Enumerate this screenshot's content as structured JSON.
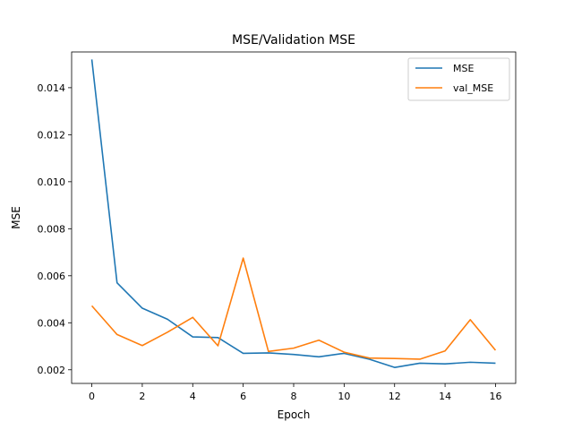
{
  "chart_data": {
    "type": "line",
    "title": "MSE/Validation MSE",
    "xlabel": "Epoch",
    "ylabel": "MSE",
    "xlim": [
      -0.8,
      16.8
    ],
    "ylim": [
      0.00142,
      0.01552
    ],
    "xticks": [
      0,
      2,
      4,
      6,
      8,
      10,
      12,
      14,
      16
    ],
    "xtick_labels": [
      "0",
      "2",
      "4",
      "6",
      "8",
      "10",
      "12",
      "14",
      "16"
    ],
    "yticks": [
      0.002,
      0.004,
      0.006,
      0.008,
      0.01,
      0.012,
      0.014
    ],
    "ytick_labels": [
      "0.002",
      "0.004",
      "0.006",
      "0.008",
      "0.010",
      "0.012",
      "0.014"
    ],
    "grid": false,
    "legend_position": "top-right",
    "x": [
      0,
      1,
      2,
      3,
      4,
      5,
      6,
      7,
      8,
      9,
      10,
      11,
      12,
      13,
      14,
      15,
      16
    ],
    "series": [
      {
        "name": "MSE",
        "color": "#1f77b4",
        "values": [
          0.0152,
          0.0057,
          0.00462,
          0.00415,
          0.0034,
          0.00337,
          0.0027,
          0.00272,
          0.00265,
          0.00255,
          0.0027,
          0.00245,
          0.0021,
          0.00228,
          0.00225,
          0.00232,
          0.00228
        ]
      },
      {
        "name": "val_MSE",
        "color": "#ff7f0e",
        "values": [
          0.00472,
          0.0035,
          0.00303,
          0.0036,
          0.00423,
          0.00302,
          0.00675,
          0.00278,
          0.00292,
          0.00326,
          0.00275,
          0.0025,
          0.00248,
          0.00245,
          0.0028,
          0.00413,
          0.00283
        ]
      }
    ]
  }
}
